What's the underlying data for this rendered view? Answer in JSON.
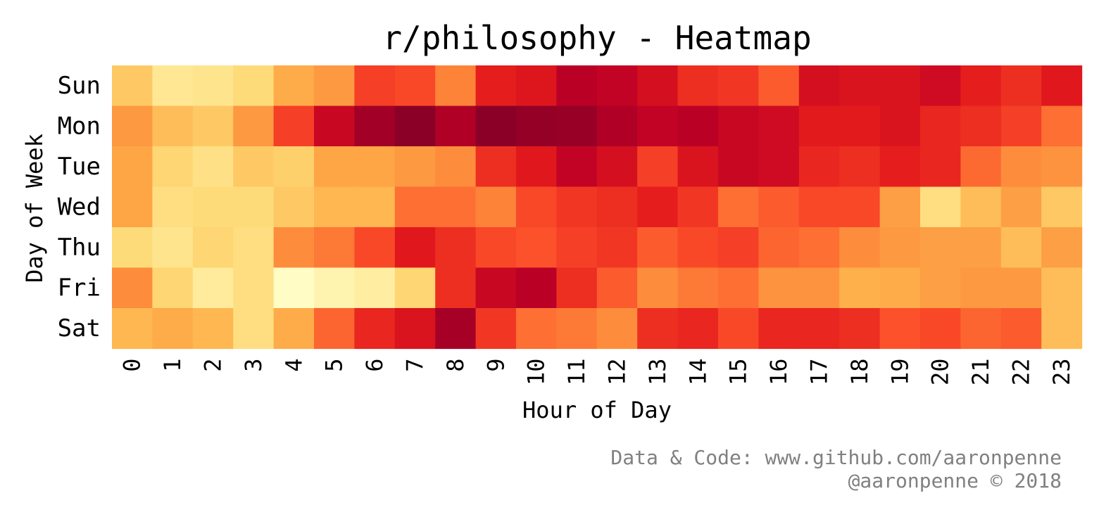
{
  "chart_data": {
    "type": "heatmap",
    "title": "r/philosophy - Heatmap",
    "xlabel": "Hour of Day",
    "ylabel": "Day of Week",
    "x_categories": [
      "0",
      "1",
      "2",
      "3",
      "4",
      "5",
      "6",
      "7",
      "8",
      "9",
      "10",
      "11",
      "12",
      "13",
      "14",
      "15",
      "16",
      "17",
      "18",
      "19",
      "20",
      "21",
      "22",
      "23"
    ],
    "y_categories": [
      "Sun",
      "Mon",
      "Tue",
      "Wed",
      "Thu",
      "Fri",
      "Sat"
    ],
    "colormap": "YlOrRd",
    "value_range": [
      0,
      1
    ],
    "values": [
      [
        0.3,
        0.16,
        0.18,
        0.24,
        0.4,
        0.46,
        0.66,
        0.64,
        0.52,
        0.74,
        0.77,
        0.88,
        0.86,
        0.8,
        0.7,
        0.68,
        0.6,
        0.8,
        0.78,
        0.78,
        0.82,
        0.74,
        0.7,
        0.76
      ],
      [
        0.46,
        0.34,
        0.3,
        0.46,
        0.66,
        0.84,
        0.93,
        0.98,
        0.9,
        0.98,
        0.96,
        0.95,
        0.9,
        0.86,
        0.88,
        0.84,
        0.82,
        0.75,
        0.75,
        0.78,
        0.72,
        0.7,
        0.66,
        0.56
      ],
      [
        0.42,
        0.26,
        0.2,
        0.3,
        0.28,
        0.42,
        0.42,
        0.46,
        0.5,
        0.7,
        0.76,
        0.86,
        0.8,
        0.66,
        0.78,
        0.84,
        0.82,
        0.72,
        0.7,
        0.74,
        0.72,
        0.57,
        0.5,
        0.48
      ],
      [
        0.42,
        0.22,
        0.24,
        0.24,
        0.3,
        0.36,
        0.36,
        0.56,
        0.56,
        0.52,
        0.64,
        0.68,
        0.7,
        0.74,
        0.68,
        0.56,
        0.6,
        0.64,
        0.64,
        0.44,
        0.22,
        0.34,
        0.44,
        0.3
      ],
      [
        0.24,
        0.18,
        0.26,
        0.22,
        0.5,
        0.54,
        0.64,
        0.76,
        0.7,
        0.64,
        0.62,
        0.66,
        0.68,
        0.6,
        0.64,
        0.66,
        0.58,
        0.56,
        0.5,
        0.46,
        0.44,
        0.44,
        0.34,
        0.44
      ],
      [
        0.5,
        0.26,
        0.14,
        0.22,
        0.02,
        0.08,
        0.12,
        0.26,
        0.7,
        0.84,
        0.88,
        0.7,
        0.6,
        0.5,
        0.54,
        0.56,
        0.48,
        0.48,
        0.38,
        0.4,
        0.44,
        0.46,
        0.46,
        0.34
      ],
      [
        0.36,
        0.4,
        0.36,
        0.22,
        0.4,
        0.58,
        0.72,
        0.78,
        0.92,
        0.68,
        0.56,
        0.54,
        0.5,
        0.7,
        0.72,
        0.64,
        0.72,
        0.72,
        0.7,
        0.62,
        0.64,
        0.58,
        0.6,
        0.34
      ]
    ]
  },
  "footer": {
    "line1": "Data & Code: www.github.com/aaronpenne",
    "line2": "@aaronpenne © 2018"
  }
}
